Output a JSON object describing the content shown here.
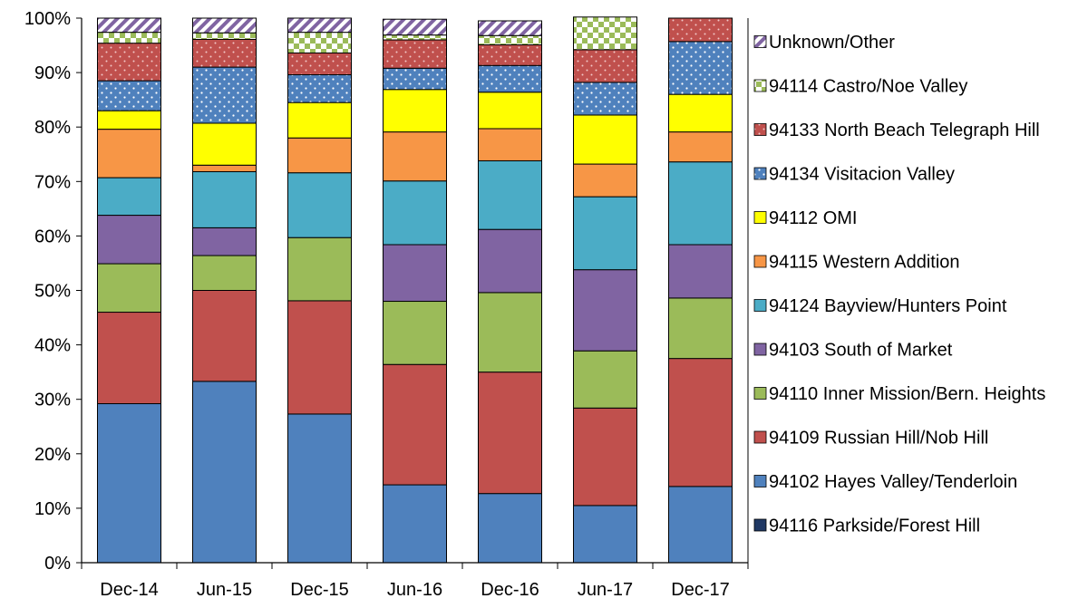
{
  "chart_data": {
    "type": "bar",
    "stacked": true,
    "percent": true,
    "categories": [
      "Dec-14",
      "Jun-15",
      "Dec-15",
      "Jun-16",
      "Dec-16",
      "Jun-17",
      "Dec-17"
    ],
    "ylim": [
      0,
      100
    ],
    "yticks": [
      "0%",
      "10%",
      "20%",
      "30%",
      "40%",
      "50%",
      "60%",
      "70%",
      "80%",
      "90%",
      "100%"
    ],
    "legend_position": "right",
    "series": [
      {
        "name": "94116 Parkside/Forest Hill",
        "color": "#1F3864",
        "pattern": "solid",
        "values": [
          0,
          0,
          0,
          0,
          0,
          0,
          0
        ]
      },
      {
        "name": "94102 Hayes Valley/Tenderloin",
        "color": "#4F81BD",
        "pattern": "solid",
        "values": [
          29.2,
          33.3,
          27.3,
          14.3,
          12.7,
          10.5,
          14.0
        ]
      },
      {
        "name": "94109 Russian Hill/Nob Hill",
        "color": "#C0504D",
        "pattern": "solid",
        "values": [
          16.8,
          16.7,
          20.8,
          22.1,
          22.3,
          17.9,
          23.5
        ]
      },
      {
        "name": "94110 Inner Mission/Bern. Heights",
        "color": "#9BBB59",
        "pattern": "solid",
        "values": [
          8.9,
          6.4,
          11.6,
          11.6,
          14.6,
          10.5,
          11.1
        ]
      },
      {
        "name": "94103 South of Market",
        "color": "#8064A2",
        "pattern": "solid",
        "values": [
          8.9,
          5.1,
          0,
          10.4,
          11.6,
          14.9,
          9.8
        ]
      },
      {
        "name": "94124 Bayview/Hunters Point",
        "color": "#4BACC6",
        "pattern": "solid",
        "values": [
          6.9,
          10.3,
          11.9,
          11.7,
          12.6,
          13.4,
          15.2
        ]
      },
      {
        "name": "94115 Western Addition",
        "color": "#F79646",
        "pattern": "solid",
        "values": [
          8.9,
          1.2,
          6.4,
          9.0,
          5.9,
          6.0,
          5.5
        ]
      },
      {
        "name": "94112 OMI",
        "color": "#FFFF00",
        "pattern": "solid",
        "values": [
          3.4,
          7.7,
          6.5,
          7.8,
          6.7,
          9.0,
          6.9
        ]
      },
      {
        "name": "94134 Visitacion Valley",
        "color": "#4F81BD",
        "pattern": "dots",
        "values": [
          5.5,
          10.3,
          5.1,
          3.9,
          4.9,
          6.0,
          9.7
        ]
      },
      {
        "name": "94133 North Beach Telegraph Hill",
        "color": "#C0504D",
        "pattern": "dots",
        "values": [
          6.9,
          5.1,
          4.0,
          5.2,
          3.8,
          6.0,
          4.3
        ]
      },
      {
        "name": "94114 Castro/Noe Valley",
        "color": "#9BBB59",
        "pattern": "checker",
        "values": [
          2.0,
          1.2,
          3.8,
          0.9,
          1.7,
          6.0,
          0
        ]
      },
      {
        "name": "Unknown/Other",
        "color": "#8064A2",
        "pattern": "diagonal",
        "values": [
          2.6,
          2.7,
          2.6,
          2.9,
          2.7,
          0,
          0
        ]
      }
    ],
    "legend_order": [
      "Unknown/Other",
      "94114 Castro/Noe Valley",
      "94133 North Beach Telegraph Hill",
      "94134 Visitacion Valley",
      "94112 OMI",
      "94115 Western Addition",
      "94124 Bayview/Hunters Point",
      "94103 South of Market",
      "94110 Inner Mission/Bern. Heights",
      "94109 Russian Hill/Nob Hill",
      "94102 Hayes Valley/Tenderloin",
      "94116 Parkside/Forest Hill"
    ]
  }
}
